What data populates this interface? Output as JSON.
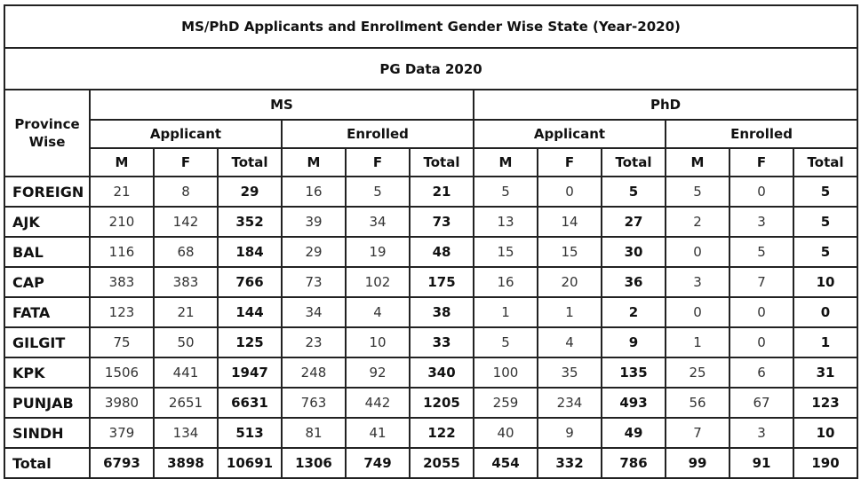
{
  "title": "MS/PhD Applicants and Enrollment Gender Wise State (Year-2020)",
  "subtitle": "PG Data 2020",
  "province_header": "Province Wise",
  "groups": [
    "MS",
    "PhD"
  ],
  "subgroups": [
    "Applicant",
    "Enrolled",
    "Applicant",
    "Enrolled"
  ],
  "col_labels": [
    "M",
    "F",
    "Total",
    "M",
    "F",
    "Total",
    "M",
    "F",
    "Total",
    "M",
    "F",
    "Total"
  ],
  "rows": [
    {
      "province": "FOREIGN",
      "values": [
        "21",
        "8",
        "29",
        "16",
        "5",
        "21",
        "5",
        "0",
        "5",
        "5",
        "0",
        "5"
      ]
    },
    {
      "province": "AJK",
      "values": [
        "210",
        "142",
        "352",
        "39",
        "34",
        "73",
        "13",
        "14",
        "27",
        "2",
        "3",
        "5"
      ]
    },
    {
      "province": "BAL",
      "values": [
        "116",
        "68",
        "184",
        "29",
        "19",
        "48",
        "15",
        "15",
        "30",
        "0",
        "5",
        "5"
      ]
    },
    {
      "province": "CAP",
      "values": [
        "383",
        "383",
        "766",
        "73",
        "102",
        "175",
        "16",
        "20",
        "36",
        "3",
        "7",
        "10"
      ]
    },
    {
      "province": "FATA",
      "values": [
        "123",
        "21",
        "144",
        "34",
        "4",
        "38",
        "1",
        "1",
        "2",
        "0",
        "0",
        "0"
      ]
    },
    {
      "province": "GILGIT",
      "values": [
        "75",
        "50",
        "125",
        "23",
        "10",
        "33",
        "5",
        "4",
        "9",
        "1",
        "0",
        "1"
      ]
    },
    {
      "province": "KPK",
      "values": [
        "1506",
        "441",
        "1947",
        "248",
        "92",
        "340",
        "100",
        "35",
        "135",
        "25",
        "6",
        "31"
      ]
    },
    {
      "province": "PUNJAB",
      "values": [
        "3980",
        "2651",
        "6631",
        "763",
        "442",
        "1205",
        "259",
        "234",
        "493",
        "56",
        "67",
        "123"
      ]
    },
    {
      "province": "SINDH",
      "values": [
        "379",
        "134",
        "513",
        "81",
        "41",
        "122",
        "40",
        "9",
        "49",
        "7",
        "3",
        "10"
      ]
    }
  ],
  "total_row": {
    "label": "Total",
    "values": [
      "6793",
      "3898",
      "10691",
      "1306",
      "749",
      "2055",
      "454",
      "332",
      "786",
      "99",
      "91",
      "190"
    ]
  }
}
